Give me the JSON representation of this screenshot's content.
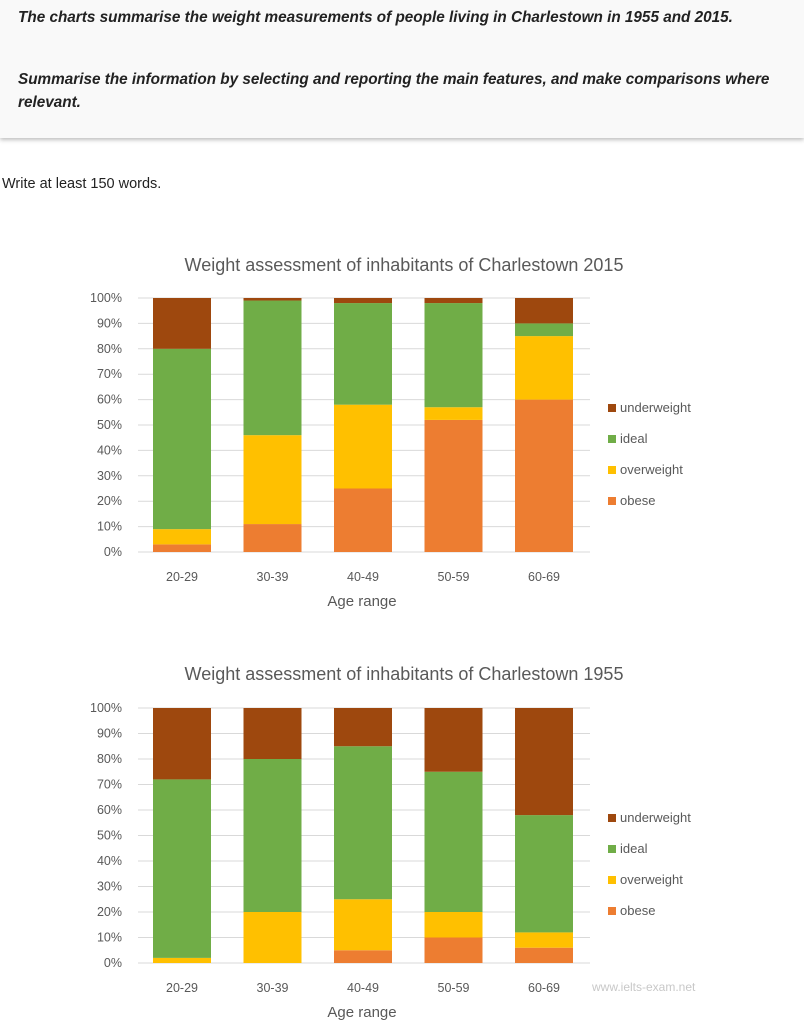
{
  "prompt": {
    "line1": "The charts summarise the weight measurements of people living in Charlestown in 1955 and 2015.",
    "line2": "Summarise the information by selecting and reporting the main features, and make comparisons where relevant."
  },
  "instruction": "Write at least 150 words.",
  "watermark": "www.ielts-exam.net",
  "chart_data": [
    {
      "type": "bar",
      "stacked": true,
      "title": "Weight assessment of inhabitants of Charlestown 2015",
      "xlabel": "Age range",
      "ylabel": "",
      "ylim": [
        0,
        100
      ],
      "yticks": [
        "0%",
        "10%",
        "20%",
        "30%",
        "40%",
        "50%",
        "60%",
        "70%",
        "80%",
        "90%",
        "100%"
      ],
      "categories": [
        "20-29",
        "30-39",
        "40-49",
        "50-59",
        "60-69"
      ],
      "grid": true,
      "legend": "right",
      "series": [
        {
          "name": "obese",
          "color": "#ed7d31",
          "values": [
            3,
            11,
            25,
            52,
            60
          ]
        },
        {
          "name": "overweight",
          "color": "#ffc000",
          "values": [
            6,
            35,
            33,
            5,
            25
          ]
        },
        {
          "name": "ideal",
          "color": "#70ad47",
          "values": [
            71,
            53,
            40,
            41,
            5
          ]
        },
        {
          "name": "underweight",
          "color": "#9e480e",
          "values": [
            20,
            1,
            2,
            2,
            10
          ]
        }
      ]
    },
    {
      "type": "bar",
      "stacked": true,
      "title": "Weight assessment of inhabitants of Charlestown 1955",
      "xlabel": "Age range",
      "ylabel": "",
      "ylim": [
        0,
        100
      ],
      "yticks": [
        "0%",
        "10%",
        "20%",
        "30%",
        "40%",
        "50%",
        "60%",
        "70%",
        "80%",
        "90%",
        "100%"
      ],
      "categories": [
        "20-29",
        "30-39",
        "40-49",
        "50-59",
        "60-69"
      ],
      "grid": true,
      "legend": "right",
      "series": [
        {
          "name": "obese",
          "color": "#ed7d31",
          "values": [
            0,
            0,
            5,
            10,
            6
          ]
        },
        {
          "name": "overweight",
          "color": "#ffc000",
          "values": [
            2,
            20,
            20,
            10,
            6
          ]
        },
        {
          "name": "ideal",
          "color": "#70ad47",
          "values": [
            70,
            60,
            60,
            55,
            46
          ]
        },
        {
          "name": "underweight",
          "color": "#9e480e",
          "values": [
            28,
            20,
            15,
            25,
            42
          ]
        }
      ]
    }
  ]
}
